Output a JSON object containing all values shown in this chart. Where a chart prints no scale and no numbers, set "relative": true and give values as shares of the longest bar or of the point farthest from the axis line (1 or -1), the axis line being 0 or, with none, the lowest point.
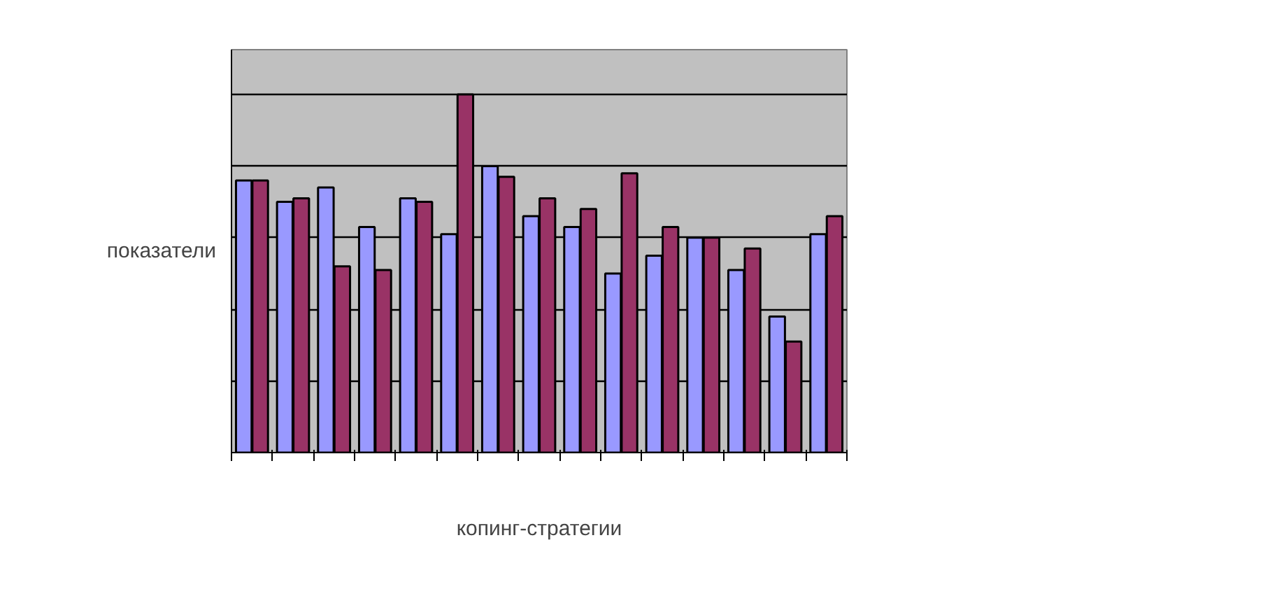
{
  "chart_data": {
    "type": "bar",
    "relative": true,
    "xlabel": "копинг-стратегии",
    "ylabel": "показатели",
    "categories": [
      null,
      null,
      null,
      null,
      null,
      null,
      null,
      null,
      null,
      null,
      null,
      null,
      null,
      null,
      null
    ],
    "series": [
      {
        "color": "#9999ff",
        "values": [
          0.76,
          0.7,
          0.74,
          0.63,
          0.71,
          0.61,
          0.8,
          0.66,
          0.63,
          0.5,
          0.55,
          0.6,
          0.51,
          0.38,
          0.61
        ]
      },
      {
        "color": "#993366",
        "values": [
          0.76,
          0.71,
          0.52,
          0.51,
          0.7,
          1.0,
          0.77,
          0.71,
          0.68,
          0.78,
          0.63,
          0.6,
          0.57,
          0.31,
          0.66
        ]
      }
    ],
    "grid": "y",
    "tick_labels": false
  }
}
